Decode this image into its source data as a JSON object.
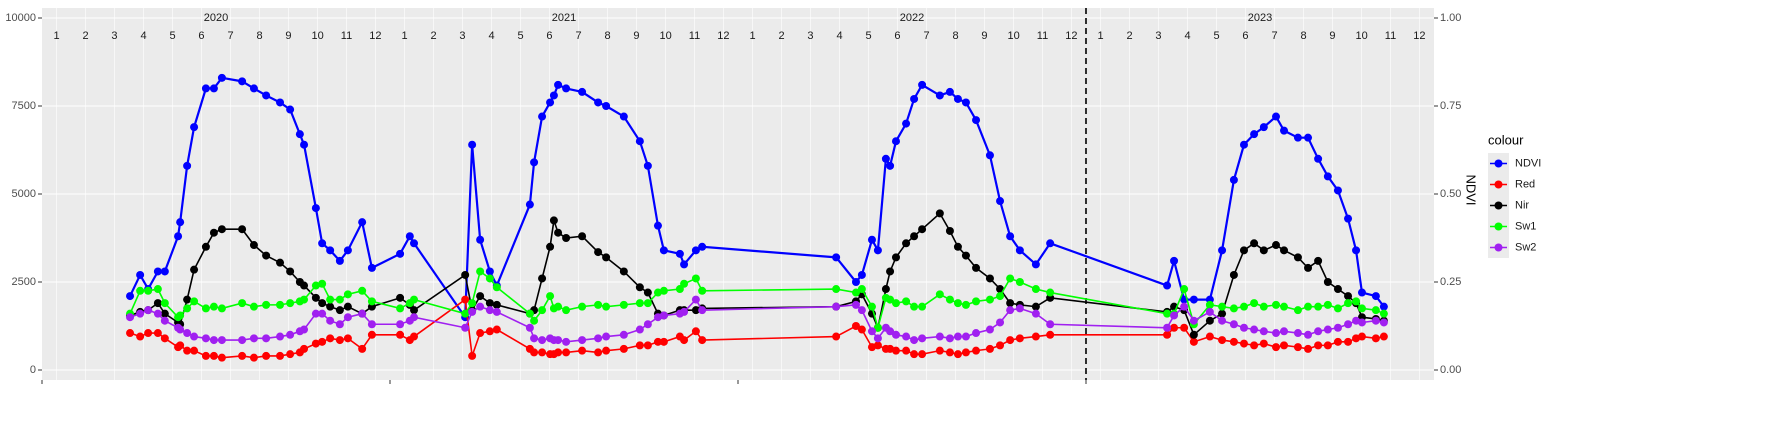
{
  "chart_data": {
    "type": "line",
    "x": [
      2020.253,
      2020.282,
      2020.305,
      2020.333,
      2020.353,
      2020.391,
      2020.397,
      2020.417,
      2020.437,
      2020.471,
      2020.494,
      2020.517,
      2020.575,
      2020.609,
      2020.644,
      2020.684,
      2020.713,
      2020.741,
      2020.753,
      2020.787,
      2020.805,
      2020.828,
      2020.856,
      2020.879,
      2020.92,
      2020.948,
      2021.029,
      2021.057,
      2021.069,
      2021.216,
      2021.236,
      2021.259,
      2021.287,
      2021.307,
      2021.402,
      2021.414,
      2021.437,
      2021.46,
      2021.471,
      2021.483,
      2021.506,
      2021.552,
      2021.598,
      2021.621,
      2021.672,
      2021.718,
      2021.741,
      2021.77,
      2021.787,
      2021.833,
      2021.845,
      2021.879,
      2021.897,
      2022.282,
      2022.339,
      2022.356,
      2022.385,
      2022.402,
      2022.425,
      2022.437,
      2022.454,
      2022.483,
      2022.506,
      2022.529,
      2022.58,
      2022.609,
      2022.632,
      2022.655,
      2022.684,
      2022.724,
      2022.753,
      2022.782,
      2022.81,
      2022.856,
      2022.897,
      2023.233,
      2023.253,
      2023.282,
      2023.31,
      2023.356,
      2023.391,
      2023.425,
      2023.454,
      2023.483,
      2023.511,
      2023.546,
      2023.569,
      2023.609,
      2023.638,
      2023.667,
      2023.695,
      2023.724,
      2023.753,
      2023.776,
      2023.793,
      2023.833,
      2023.856
    ],
    "series": [
      {
        "name": "NDVI",
        "color": "#0000ff",
        "axis": "y2",
        "values": [
          0.21,
          0.27,
          0.23,
          0.28,
          0.28,
          0.38,
          0.42,
          0.58,
          0.69,
          0.8,
          0.8,
          0.83,
          0.82,
          0.8,
          0.78,
          0.76,
          0.74,
          0.67,
          0.64,
          0.46,
          0.36,
          0.34,
          0.31,
          0.34,
          0.42,
          0.29,
          0.33,
          0.38,
          0.36,
          0.15,
          0.64,
          0.37,
          0.28,
          0.24,
          0.47,
          0.59,
          0.72,
          0.76,
          0.78,
          0.81,
          0.8,
          0.79,
          0.76,
          0.75,
          0.72,
          0.65,
          0.58,
          0.41,
          0.34,
          0.33,
          0.3,
          0.34,
          0.35,
          0.32,
          0.25,
          0.27,
          0.37,
          0.34,
          0.6,
          0.58,
          0.65,
          0.7,
          0.77,
          0.81,
          0.78,
          0.79,
          0.77,
          0.76,
          0.71,
          0.61,
          0.48,
          0.38,
          0.34,
          0.3,
          0.36,
          0.24,
          0.31,
          0.2,
          0.2,
          0.2,
          0.34,
          0.54,
          0.64,
          0.67,
          0.69,
          0.72,
          0.68,
          0.66,
          0.66,
          0.6,
          0.55,
          0.51,
          0.43,
          0.34,
          0.22,
          0.21,
          0.18
        ]
      },
      {
        "name": "Red",
        "color": "#ff0000",
        "values": [
          1050,
          950,
          1050,
          1050,
          900,
          650,
          700,
          550,
          550,
          400,
          400,
          350,
          400,
          350,
          400,
          400,
          450,
          500,
          600,
          750,
          800,
          900,
          850,
          900,
          600,
          1000,
          1000,
          850,
          950,
          2000,
          400,
          1050,
          1100,
          1150,
          600,
          500,
          500,
          450,
          450,
          500,
          500,
          550,
          500,
          550,
          600,
          700,
          700,
          800,
          800,
          950,
          850,
          1100,
          850,
          950,
          1250,
          1150,
          650,
          700,
          600,
          600,
          550,
          550,
          450,
          450,
          550,
          500,
          450,
          500,
          550,
          600,
          700,
          850,
          900,
          950,
          1000,
          1000,
          1200,
          1200,
          800,
          950,
          850,
          800,
          750,
          700,
          750,
          650,
          700,
          650,
          600,
          700,
          700,
          800,
          800,
          900,
          950,
          900,
          950
        ]
      },
      {
        "name": "Nir",
        "color": "#000000",
        "values": [
          1550,
          1650,
          1700,
          1900,
          1600,
          1350,
          1300,
          2000,
          2850,
          3500,
          3900,
          4000,
          4000,
          3550,
          3250,
          3050,
          2800,
          2500,
          2400,
          2050,
          1900,
          1800,
          1700,
          1800,
          1600,
          1800,
          2050,
          1850,
          1700,
          2700,
          1700,
          2100,
          1900,
          1850,
          1600,
          1700,
          2600,
          3500,
          4250,
          3900,
          3750,
          3800,
          3350,
          3200,
          2800,
          2350,
          2200,
          1600,
          1550,
          1700,
          1700,
          1700,
          1750,
          1800,
          1950,
          2150,
          1600,
          1200,
          2300,
          2800,
          3200,
          3600,
          3800,
          4000,
          4450,
          3950,
          3500,
          3250,
          2900,
          2600,
          2300,
          1900,
          1850,
          1800,
          2050,
          1650,
          1800,
          1700,
          1000,
          1400,
          1600,
          2700,
          3400,
          3600,
          3400,
          3550,
          3400,
          3200,
          2900,
          3100,
          2500,
          2300,
          2100,
          1900,
          1500,
          1450,
          1400
        ]
      },
      {
        "name": "Sw1",
        "color": "#00ff00",
        "values": [
          1600,
          2250,
          2250,
          2300,
          1900,
          1500,
          1550,
          1750,
          1950,
          1750,
          1800,
          1750,
          1900,
          1800,
          1850,
          1850,
          1900,
          1950,
          2000,
          2400,
          2450,
          2000,
          2000,
          2150,
          2250,
          1950,
          1750,
          1900,
          2000,
          1600,
          1900,
          2800,
          2600,
          2350,
          1600,
          1400,
          1700,
          2100,
          1750,
          1800,
          1700,
          1800,
          1850,
          1800,
          1850,
          1900,
          1900,
          2200,
          2250,
          2300,
          2450,
          2600,
          2250,
          2300,
          2200,
          2300,
          1800,
          1200,
          2050,
          2000,
          1900,
          1950,
          1800,
          1800,
          2150,
          2000,
          1900,
          1850,
          1950,
          2000,
          2100,
          2600,
          2500,
          2300,
          2200,
          1600,
          1600,
          2300,
          1300,
          1850,
          1800,
          1750,
          1800,
          1900,
          1800,
          1850,
          1800,
          1700,
          1800,
          1800,
          1850,
          1750,
          1900,
          1950,
          1750,
          1700,
          1600
        ]
      },
      {
        "name": "Sw2",
        "color": "#a020f0",
        "values": [
          1500,
          1600,
          1700,
          1600,
          1400,
          1200,
          1150,
          1050,
          950,
          900,
          850,
          850,
          850,
          900,
          900,
          950,
          1000,
          1100,
          1150,
          1600,
          1600,
          1400,
          1300,
          1500,
          1600,
          1300,
          1300,
          1400,
          1500,
          1200,
          1650,
          1800,
          1700,
          1650,
          1200,
          900,
          850,
          900,
          850,
          850,
          800,
          850,
          900,
          950,
          1000,
          1150,
          1300,
          1500,
          1550,
          1600,
          1650,
          2000,
          1700,
          1800,
          1850,
          1700,
          1100,
          900,
          1200,
          1100,
          1000,
          950,
          850,
          900,
          950,
          900,
          950,
          950,
          1050,
          1150,
          1350,
          1700,
          1750,
          1600,
          1300,
          1200,
          1550,
          1800,
          1400,
          1650,
          1400,
          1300,
          1200,
          1150,
          1100,
          1050,
          1100,
          1050,
          1000,
          1100,
          1150,
          1200,
          1300,
          1400,
          1350,
          1400,
          1350
        ]
      }
    ],
    "xlim": [
      2020,
      2024
    ],
    "xticks": [
      {
        "value": 2020.042,
        "label": "1"
      },
      {
        "value": 2020.125,
        "label": "2"
      },
      {
        "value": 2020.208,
        "label": "3"
      },
      {
        "value": 2020.292,
        "label": "4"
      },
      {
        "value": 2020.375,
        "label": "5"
      },
      {
        "value": 2020.458,
        "label": "6"
      },
      {
        "value": 2020.542,
        "label": "7"
      },
      {
        "value": 2020.625,
        "label": "8"
      },
      {
        "value": 2020.708,
        "label": "9"
      },
      {
        "value": 2020.792,
        "label": "10"
      },
      {
        "value": 2020.875,
        "label": "11"
      },
      {
        "value": 2020.958,
        "label": "12"
      },
      {
        "value": 2021.042,
        "label": "1"
      },
      {
        "value": 2021.125,
        "label": "2"
      },
      {
        "value": 2021.208,
        "label": "3"
      },
      {
        "value": 2021.292,
        "label": "4"
      },
      {
        "value": 2021.375,
        "label": "5"
      },
      {
        "value": 2021.458,
        "label": "6"
      },
      {
        "value": 2021.542,
        "label": "7"
      },
      {
        "value": 2021.625,
        "label": "8"
      },
      {
        "value": 2021.708,
        "label": "9"
      },
      {
        "value": 2021.792,
        "label": "10"
      },
      {
        "value": 2021.875,
        "label": "11"
      },
      {
        "value": 2021.958,
        "label": "12"
      },
      {
        "value": 2022.042,
        "label": "1"
      },
      {
        "value": 2022.125,
        "label": "2"
      },
      {
        "value": 2022.208,
        "label": "3"
      },
      {
        "value": 2022.292,
        "label": "4"
      },
      {
        "value": 2022.375,
        "label": "5"
      },
      {
        "value": 2022.458,
        "label": "6"
      },
      {
        "value": 2022.542,
        "label": "7"
      },
      {
        "value": 2022.625,
        "label": "8"
      },
      {
        "value": 2022.708,
        "label": "9"
      },
      {
        "value": 2022.792,
        "label": "10"
      },
      {
        "value": 2022.875,
        "label": "11"
      },
      {
        "value": 2022.958,
        "label": "12"
      },
      {
        "value": 2023.042,
        "label": "1"
      },
      {
        "value": 2023.125,
        "label": "2"
      },
      {
        "value": 2023.208,
        "label": "3"
      },
      {
        "value": 2023.292,
        "label": "4"
      },
      {
        "value": 2023.375,
        "label": "5"
      },
      {
        "value": 2023.458,
        "label": "6"
      },
      {
        "value": 2023.542,
        "label": "7"
      },
      {
        "value": 2023.625,
        "label": "8"
      },
      {
        "value": 2023.708,
        "label": "9"
      },
      {
        "value": 2023.792,
        "label": "10"
      },
      {
        "value": 2023.875,
        "label": "11"
      },
      {
        "value": 2023.958,
        "label": "12"
      }
    ],
    "year_labels": [
      {
        "value": 2020.5,
        "label": "2020"
      },
      {
        "value": 2021.5,
        "label": "2021"
      },
      {
        "value": 2022.5,
        "label": "2022"
      },
      {
        "value": 2023.5,
        "label": "2023"
      }
    ],
    "year_ticks": [
      2020,
      2021,
      2022,
      2023
    ],
    "vline": 2023,
    "vline_style": "dashed",
    "ylim": [
      -284,
      10284
    ],
    "yticks": [
      0,
      2500,
      5000,
      7500,
      10000
    ],
    "y2lim": [
      -0.0284,
      1.0284
    ],
    "y2ticks": [
      {
        "value": 0,
        "label": "0.00"
      },
      {
        "value": 0.25,
        "label": "0.25"
      },
      {
        "value": 0.5,
        "label": "0.50"
      },
      {
        "value": 0.75,
        "label": "0.75"
      },
      {
        "value": 1,
        "label": "1.00"
      }
    ],
    "y2label": "NDVI",
    "legend_title": "colour",
    "legend": "right",
    "grid": true
  }
}
